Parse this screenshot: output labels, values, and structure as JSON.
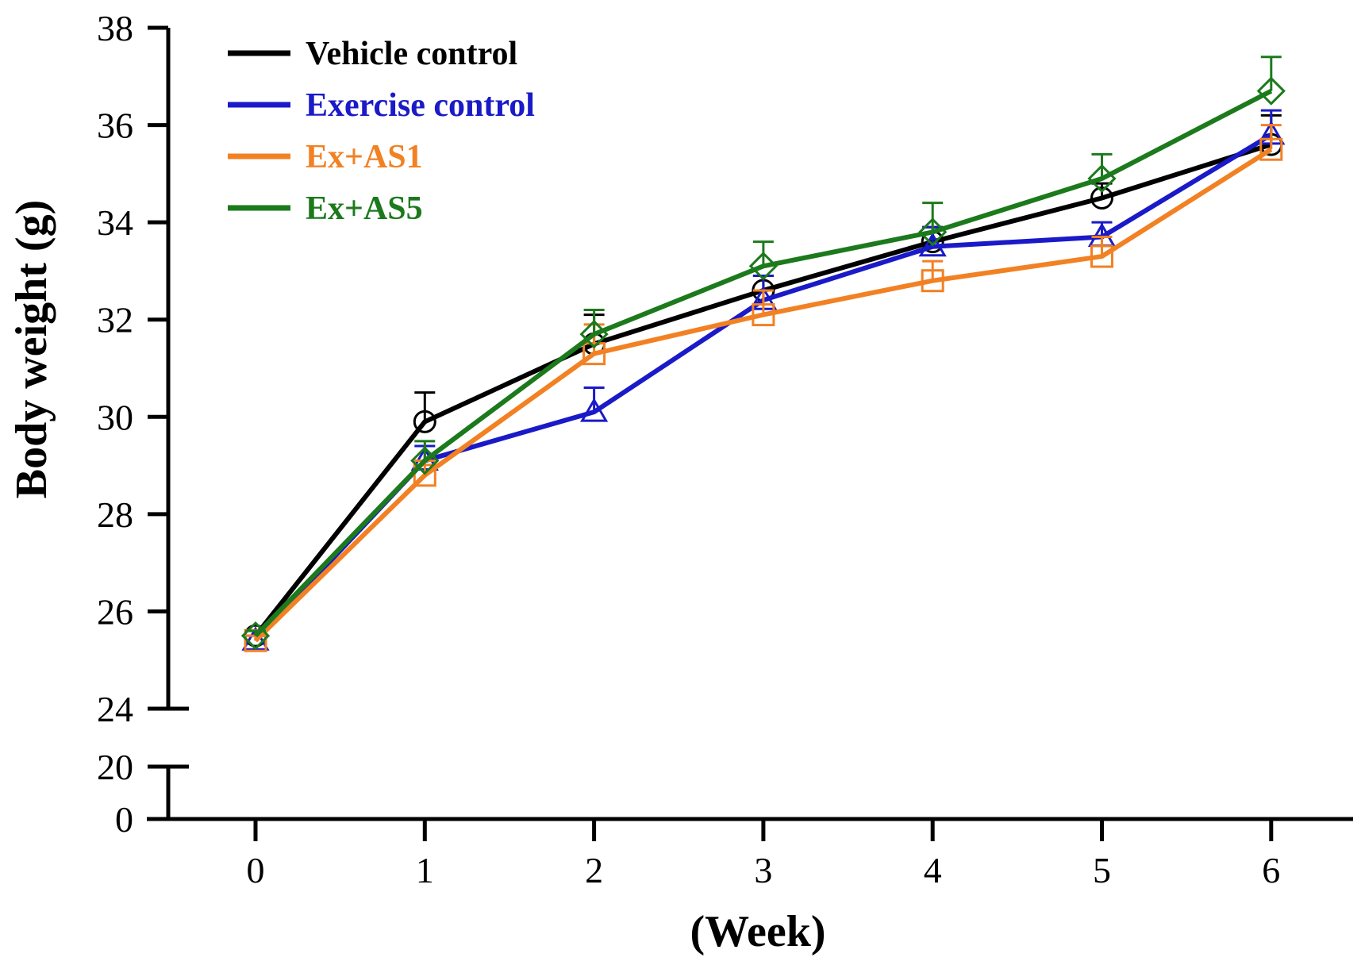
{
  "chart_data": {
    "type": "line",
    "xlabel": "(Week)",
    "ylabel": "Body weight  (g)",
    "x": [
      0,
      1,
      2,
      3,
      4,
      5,
      6
    ],
    "x_ticks": [
      "0",
      "1",
      "2",
      "3",
      "4",
      "5",
      "6"
    ],
    "y_ticks_upper": [
      "24",
      "26",
      "28",
      "30",
      "32",
      "34",
      "36",
      "38"
    ],
    "y_ticks_lower": [
      "0",
      "20"
    ],
    "ylim_upper": [
      24,
      38
    ],
    "y_axis_break": "between 20 and 24",
    "grid": false,
    "legend_position": "top-left",
    "series": [
      {
        "name": "Vehicle control",
        "color": "#000000",
        "marker": "circle",
        "values": [
          25.5,
          29.9,
          31.5,
          32.6,
          33.6,
          34.5,
          35.6
        ],
        "error": [
          0.1,
          0.6,
          0.6,
          0.3,
          0.3,
          0.3,
          0.6
        ]
      },
      {
        "name": "Exercise control",
        "color": "#1a1ac8",
        "marker": "triangle",
        "values": [
          25.4,
          29.1,
          30.1,
          32.4,
          33.5,
          33.7,
          35.8
        ],
        "error": [
          0.1,
          0.3,
          0.5,
          0.5,
          0.4,
          0.3,
          0.5
        ]
      },
      {
        "name": "Ex+AS1",
        "color": "#f28123",
        "marker": "square",
        "values": [
          25.4,
          28.8,
          31.3,
          32.1,
          32.8,
          33.3,
          35.5
        ],
        "error": [
          0.1,
          0.3,
          0.6,
          0.5,
          0.4,
          0.4,
          0.5
        ]
      },
      {
        "name": "Ex+AS5",
        "color": "#1c7a1c",
        "marker": "diamond",
        "values": [
          25.5,
          29.1,
          31.7,
          33.1,
          33.8,
          34.9,
          36.7
        ],
        "error": [
          0.1,
          0.4,
          0.5,
          0.5,
          0.6,
          0.5,
          0.7
        ]
      }
    ]
  }
}
